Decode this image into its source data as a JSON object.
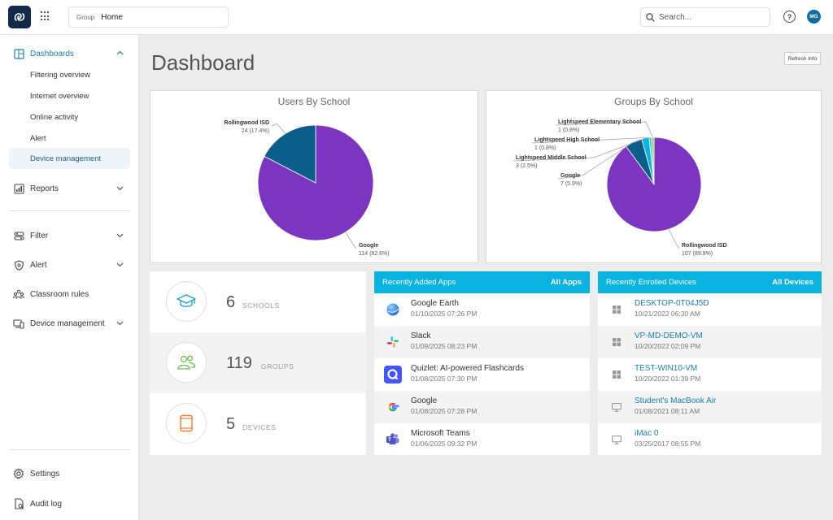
{
  "topbar": {
    "group_label": "Group",
    "group_value": "Home",
    "search_placeholder": "Search...",
    "help_glyph": "?",
    "avatar_initials": "MG"
  },
  "sidebar": {
    "dashboards": "Dashboards",
    "sub_items": [
      "Filtering overview",
      "Internet overview",
      "Online activity",
      "Alert",
      "Device management"
    ],
    "reports": "Reports",
    "filter": "Filter",
    "alert": "Alert",
    "classroom_rules": "Classroom rules",
    "device_management": "Device management",
    "settings": "Settings",
    "audit_log": "Audit log"
  },
  "main": {
    "title": "Dashboard",
    "refresh_label": "Refresh Info"
  },
  "chart_data": [
    {
      "type": "pie",
      "title": "Users By School",
      "slices": [
        {
          "label": "Google",
          "value": 114,
          "pct": "82.6%",
          "display": "114 (82.6%)",
          "color": "#7b35c1"
        },
        {
          "label": "Rollingwood ISD",
          "value": 24,
          "pct": "17.4%",
          "display": "24 (17.4%)",
          "color": "#0b5d8a"
        }
      ]
    },
    {
      "type": "pie",
      "title": "Groups By School",
      "slices": [
        {
          "label": "Rollingwood ISD",
          "value": 107,
          "pct": "89.9%",
          "display": "107 (89.9%)",
          "color": "#7b35c1"
        },
        {
          "label": "Google",
          "value": 7,
          "pct": "5.9%",
          "display": "7 (5.9%)",
          "color": "#0b5d8a"
        },
        {
          "label": "Lightspeed Middle School",
          "value": 3,
          "pct": "2.5%",
          "display": "3 (2.5%)",
          "color": "#0ab2e0"
        },
        {
          "label": "Lightspeed High School",
          "value": 1,
          "pct": "0.8%",
          "display": "1 (0.8%)",
          "color": "#2fd0c8"
        },
        {
          "label": "Lightspeed Elementary School",
          "value": 1,
          "pct": "0.8%",
          "display": "1 (0.8%)",
          "color": "#8fd14f"
        }
      ]
    }
  ],
  "stats": [
    {
      "value": "6",
      "label": "SCHOOLS",
      "icon": "graduation-cap-icon",
      "color": "#16a3c8"
    },
    {
      "value": "119",
      "label": "GROUPS",
      "icon": "users-icon",
      "color": "#6cbf4a"
    },
    {
      "value": "5",
      "label": "DEVICES",
      "icon": "tablet-icon",
      "color": "#f07a2a"
    }
  ],
  "apps": {
    "header": "Recently Added Apps",
    "link": "All Apps",
    "items": [
      {
        "name": "Google Earth",
        "date": "01/10/2025 07:26 PM",
        "icon": "google-earth-icon"
      },
      {
        "name": "Slack",
        "date": "01/09/2025 08:23 PM",
        "icon": "slack-icon"
      },
      {
        "name": "Quizlet: AI-powered Flashcards",
        "date": "01/08/2025 07:30 PM",
        "icon": "quizlet-icon"
      },
      {
        "name": "Google",
        "date": "01/08/2025 07:28 PM",
        "icon": "google-icon"
      },
      {
        "name": "Microsoft Teams",
        "date": "01/06/2025 09:32 PM",
        "icon": "teams-icon"
      }
    ]
  },
  "devices": {
    "header": "Recently Enrolled Devices",
    "link": "All Devices",
    "items": [
      {
        "name": "DESKTOP-0T04J5D",
        "date": "10/21/2022 06:30 AM",
        "icon": "windows-icon"
      },
      {
        "name": "VP-MD-DEMO-VM",
        "date": "10/20/2022 02:09 PM",
        "icon": "windows-icon"
      },
      {
        "name": "TEST-WIN10-VM",
        "date": "10/20/2022 01:39 PM",
        "icon": "windows-icon"
      },
      {
        "name": "Student's MacBook Air",
        "date": "01/08/2021 08:11 AM",
        "icon": "monitor-icon"
      },
      {
        "name": "iMac 0",
        "date": "03/25/2017 08:55 PM",
        "icon": "monitor-icon"
      }
    ]
  }
}
